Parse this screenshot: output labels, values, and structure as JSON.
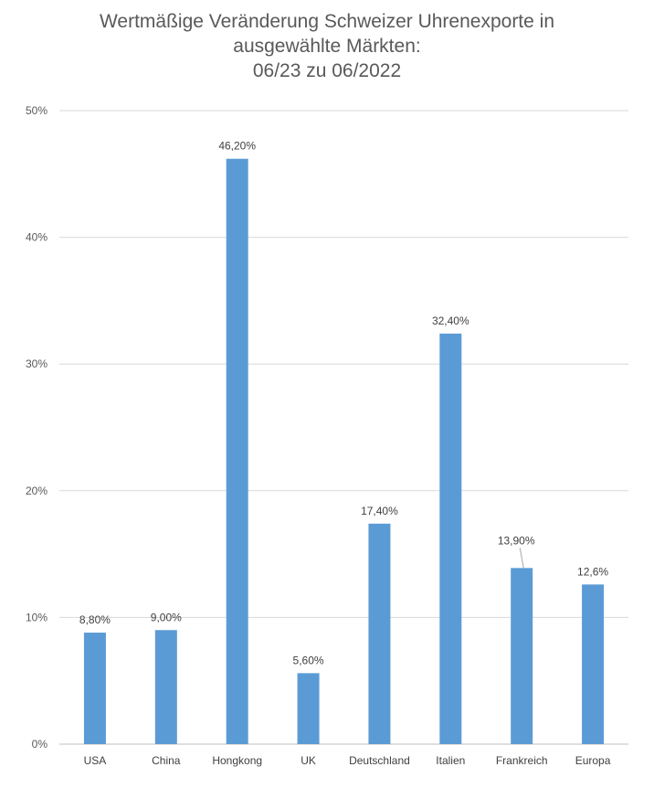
{
  "chart_data": {
    "type": "bar",
    "title_lines": [
      "Wertmäßige Veränderung Schweizer Uhrenexporte in",
      "ausgewählte Märkten:",
      "06/23 zu 06/2022"
    ],
    "categories": [
      "USA",
      "China",
      "Hongkong",
      "UK",
      "Deutschland",
      "Italien",
      "Frankreich",
      "Europa"
    ],
    "values": [
      8.8,
      9.0,
      46.2,
      5.6,
      17.4,
      32.4,
      13.9,
      12.6
    ],
    "data_labels": [
      "8,80%",
      "9,00%",
      "46,20%",
      "5,60%",
      "17,40%",
      "32,40%",
      "13,90%",
      "12,6%"
    ],
    "yticks": [
      0,
      10,
      20,
      30,
      40,
      50
    ],
    "ytick_labels": [
      "0%",
      "10%",
      "20%",
      "30%",
      "40%",
      "50%"
    ],
    "ylim": [
      0,
      50
    ],
    "xlabel": "",
    "ylabel": "",
    "grid": true,
    "legend": "none",
    "colors": {
      "bar": "#5b9bd5",
      "grid": "#d9d9d9",
      "axis": "#bfbfbf",
      "text": "#595959"
    }
  }
}
